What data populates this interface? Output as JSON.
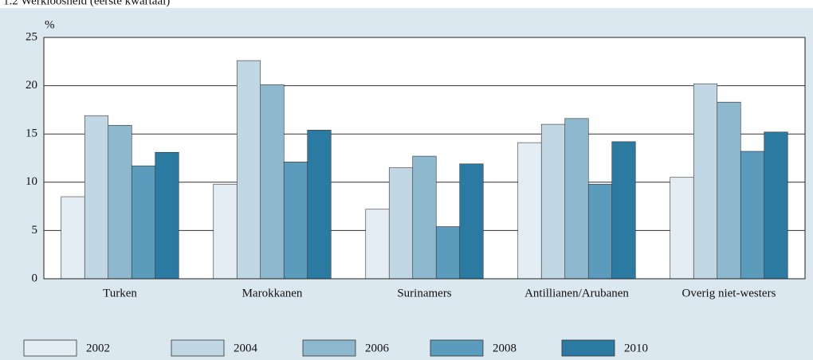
{
  "chart_data": {
    "type": "bar",
    "title": "1.2 Werkloosheid (eerste kwartaal)",
    "y_unit": "%",
    "categories": [
      "Turken",
      "Marokkanen",
      "Surinamers",
      "Antillianen/Arubanen",
      "Overig niet-westers"
    ],
    "series": [
      {
        "name": "2002",
        "color": "#e4edf3",
        "values": [
          8.5,
          9.8,
          7.2,
          14.1,
          10.5
        ]
      },
      {
        "name": "2004",
        "color": "#c1d7e4",
        "values": [
          16.9,
          22.6,
          11.5,
          16.0,
          20.2
        ]
      },
      {
        "name": "2006",
        "color": "#8db8ce",
        "values": [
          15.9,
          20.1,
          12.7,
          16.6,
          18.3
        ]
      },
      {
        "name": "2008",
        "color": "#5b9bbc",
        "values": [
          11.7,
          12.1,
          5.4,
          9.8,
          13.2
        ]
      },
      {
        "name": "2010",
        "color": "#2a7aa2",
        "values": [
          13.1,
          15.4,
          11.9,
          14.2,
          15.2
        ]
      }
    ],
    "ylim": [
      0,
      25
    ],
    "yticks": [
      0,
      5,
      10,
      15,
      20,
      25
    ],
    "grid": true
  }
}
